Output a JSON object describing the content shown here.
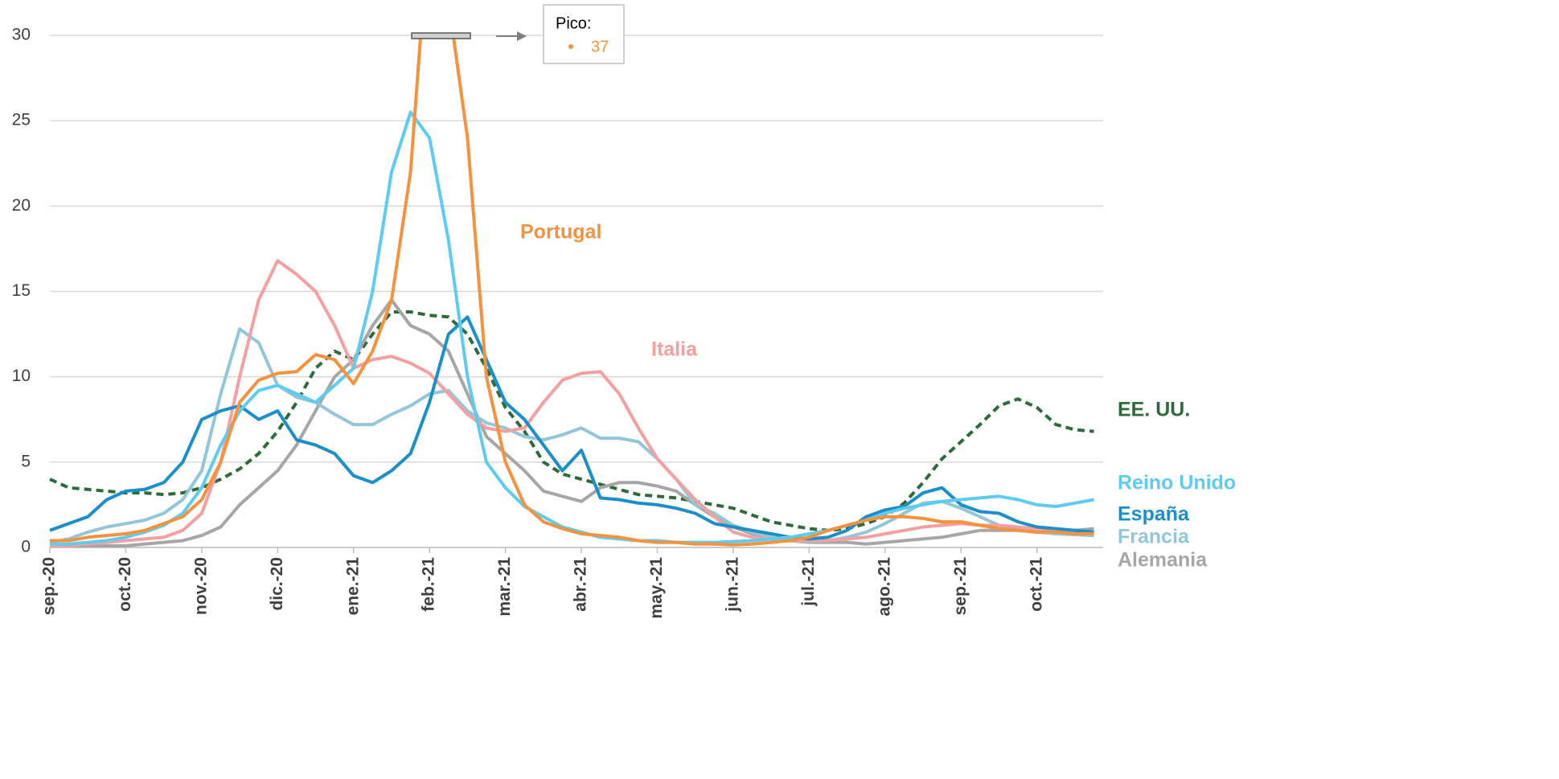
{
  "chart_data": {
    "type": "line",
    "x": [
      0,
      0.25,
      0.5,
      0.75,
      1,
      1.25,
      1.5,
      1.75,
      2,
      2.25,
      2.5,
      2.75,
      3,
      3.25,
      3.5,
      3.75,
      4,
      4.25,
      4.5,
      4.75,
      5,
      5.25,
      5.5,
      5.75,
      6,
      6.25,
      6.5,
      6.75,
      7,
      7.25,
      7.5,
      7.75,
      8,
      8.25,
      8.5,
      8.75,
      9,
      9.25,
      9.5,
      9.75,
      10,
      10.25,
      10.5,
      10.75,
      11,
      11.25,
      11.5,
      11.75,
      12,
      12.25,
      12.5,
      12.75,
      13,
      13.25,
      13.5,
      13.75
    ],
    "xlim": [
      0,
      13.85
    ],
    "xticks": [
      {
        "value": 0,
        "label": "sep.-20"
      },
      {
        "value": 1,
        "label": "oct.-20"
      },
      {
        "value": 2,
        "label": "nov.-20"
      },
      {
        "value": 3,
        "label": "dic.-20"
      },
      {
        "value": 4,
        "label": "ene.-21"
      },
      {
        "value": 5,
        "label": "feb.-21"
      },
      {
        "value": 6,
        "label": "mar.-21"
      },
      {
        "value": 7,
        "label": "abr.-21"
      },
      {
        "value": 8,
        "label": "may.-21"
      },
      {
        "value": 9,
        "label": "jun.-21"
      },
      {
        "value": 10,
        "label": "jul.-21"
      },
      {
        "value": 11,
        "label": "ago.-21"
      },
      {
        "value": 12,
        "label": "sep.-21"
      },
      {
        "value": 13,
        "label": "oct.-21"
      }
    ],
    "ylim": [
      0,
      30
    ],
    "yticks": [
      0,
      5,
      10,
      15,
      20,
      25,
      30
    ],
    "grid": true,
    "series": [
      {
        "name": "EE. UU.",
        "color": "#2f6b3a",
        "style": "dashed",
        "values": [
          4.0,
          3.5,
          3.4,
          3.3,
          3.2,
          3.2,
          3.1,
          3.2,
          3.5,
          4.0,
          4.6,
          5.5,
          6.8,
          8.5,
          10.5,
          11.5,
          11.0,
          12.5,
          13.8,
          13.8,
          13.6,
          13.5,
          12.5,
          10.5,
          8.2,
          6.8,
          5.0,
          4.3,
          4.0,
          3.7,
          3.4,
          3.1,
          3.0,
          2.9,
          2.7,
          2.5,
          2.3,
          1.9,
          1.5,
          1.3,
          1.1,
          1.0,
          1.1,
          1.4,
          1.8,
          2.6,
          3.8,
          5.2,
          6.2,
          7.2,
          8.3,
          8.7,
          8.2,
          7.2,
          6.9,
          6.8
        ]
      },
      {
        "name": "Alemania",
        "color": "#a6a6a6",
        "style": "solid",
        "values": [
          0.1,
          0.1,
          0.1,
          0.1,
          0.1,
          0.2,
          0.3,
          0.4,
          0.7,
          1.2,
          2.5,
          3.5,
          4.5,
          6.0,
          8.0,
          10.0,
          11.0,
          13.0,
          14.5,
          13.0,
          12.5,
          11.5,
          9.0,
          6.5,
          5.5,
          4.5,
          3.3,
          3.0,
          2.7,
          3.5,
          3.8,
          3.8,
          3.6,
          3.3,
          2.5,
          1.8,
          1.2,
          0.8,
          0.6,
          0.4,
          0.3,
          0.3,
          0.3,
          0.2,
          0.3,
          0.4,
          0.5,
          0.6,
          0.8,
          1.0,
          1.0,
          1.0,
          0.9,
          0.9,
          1.0,
          1.1
        ]
      },
      {
        "name": "Francia",
        "color": "#92c6d8",
        "style": "solid",
        "values": [
          0.3,
          0.5,
          0.9,
          1.2,
          1.4,
          1.6,
          2.0,
          2.8,
          4.5,
          9.0,
          12.8,
          12.0,
          9.5,
          8.8,
          8.5,
          7.8,
          7.2,
          7.2,
          7.8,
          8.3,
          9.0,
          9.2,
          8.0,
          7.3,
          7.0,
          6.5,
          6.3,
          6.6,
          7.0,
          6.4,
          6.4,
          6.2,
          5.2,
          4.0,
          2.5,
          2.0,
          1.3,
          0.9,
          0.6,
          0.4,
          0.35,
          0.4,
          0.6,
          0.9,
          1.4,
          2.0,
          2.6,
          2.7,
          2.3,
          1.8,
          1.3,
          1.1,
          0.9,
          0.8,
          0.75,
          0.7
        ]
      },
      {
        "name": "Italia",
        "color": "#f4a0a0",
        "style": "solid",
        "values": [
          0.1,
          0.1,
          0.2,
          0.3,
          0.4,
          0.5,
          0.6,
          1.0,
          2.0,
          5.0,
          10,
          14.5,
          16.8,
          16,
          15,
          13,
          10.5,
          11,
          11.2,
          10.8,
          10.2,
          9,
          7.8,
          7,
          6.8,
          7.0,
          8.5,
          9.8,
          10.2,
          10.3,
          9,
          7,
          5.2,
          4,
          2.8,
          1.8,
          0.9,
          0.6,
          0.5,
          0.4,
          0.4,
          0.4,
          0.5,
          0.6,
          0.8,
          1.0,
          1.2,
          1.3,
          1.4,
          1.3,
          1.3,
          1.2,
          1.1,
          1.0,
          0.9,
          0.8
        ]
      },
      {
        "name": "España",
        "color": "#1a8fc9",
        "style": "solid",
        "values": [
          1.0,
          1.4,
          1.8,
          2.8,
          3.3,
          3.4,
          3.8,
          5.0,
          7.5,
          8.0,
          8.3,
          7.5,
          8.0,
          6.3,
          6.0,
          5.5,
          4.2,
          3.8,
          4.5,
          5.5,
          8.5,
          12.5,
          13.5,
          11,
          8.5,
          7.5,
          6,
          4.5,
          5.7,
          2.9,
          2.8,
          2.6,
          2.5,
          2.3,
          2.0,
          1.4,
          1.2,
          1.0,
          0.8,
          0.6,
          0.5,
          0.6,
          1.0,
          1.8,
          2.2,
          2.4,
          3.2,
          3.5,
          2.5,
          2.1,
          2.0,
          1.5,
          1.2,
          1.1,
          1.0,
          0.9
        ]
      },
      {
        "name": "Reino Unido",
        "color": "#5ecbf1",
        "style": "solid",
        "values": [
          0.2,
          0.2,
          0.3,
          0.4,
          0.6,
          0.9,
          1.3,
          2.0,
          3.5,
          6.0,
          8.0,
          9.2,
          9.5,
          9.0,
          8.5,
          9.5,
          10.5,
          15,
          22,
          25.5,
          24,
          18,
          10,
          5,
          3.5,
          2.4,
          1.8,
          1.2,
          0.9,
          0.6,
          0.5,
          0.4,
          0.4,
          0.3,
          0.3,
          0.3,
          0.35,
          0.4,
          0.5,
          0.6,
          0.8,
          1.0,
          1.3,
          1.6,
          2.0,
          2.3,
          2.5,
          2.7,
          2.8,
          2.9,
          3.0,
          2.8,
          2.5,
          2.4,
          2.6,
          2.8
        ]
      },
      {
        "name": "Portugal",
        "color": "#f5923e",
        "style": "solid",
        "values": [
          0.4,
          0.4,
          0.6,
          0.7,
          0.8,
          1.0,
          1.4,
          1.8,
          2.8,
          5.0,
          8.5,
          9.8,
          10.2,
          10.3,
          11.3,
          11.0,
          9.6,
          11.5,
          14.5,
          22,
          37,
          32,
          24,
          10,
          5,
          2.5,
          1.5,
          1.1,
          0.8,
          0.7,
          0.6,
          0.4,
          0.3,
          0.3,
          0.2,
          0.2,
          0.15,
          0.2,
          0.3,
          0.4,
          0.6,
          1.0,
          1.3,
          1.6,
          1.8,
          1.8,
          1.7,
          1.5,
          1.5,
          1.3,
          1.1,
          1.0,
          0.9,
          0.9,
          0.8,
          0.8
        ]
      }
    ],
    "annotation": {
      "title": "Pico:",
      "value": 37
    }
  }
}
